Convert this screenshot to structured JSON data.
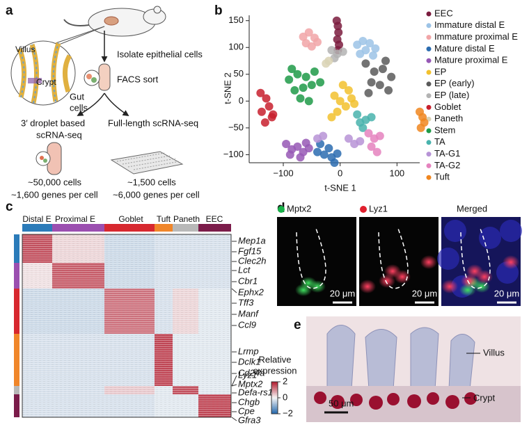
{
  "panel_a": {
    "label": "a",
    "villus": "Villus",
    "crypt": "Crypt",
    "gut_cells": [
      "Gut",
      "cells"
    ],
    "step1": "Isolate epithelial cells",
    "step2": "FACS sort",
    "method1": [
      "3′ droplet based",
      "scRNA-seq"
    ],
    "method2": "Full-length scRNA-seq",
    "result1": [
      "~50,000 cells",
      "~1,600 genes per cell"
    ],
    "result2": [
      "~1,500 cells",
      "~6,000 genes per cell"
    ]
  },
  "panel_b": {
    "label": "b"
  },
  "panel_c": {
    "label": "c"
  },
  "panel_d": {
    "label": "d",
    "channels": [
      "Mptx2",
      "Lyz1",
      "Merged"
    ],
    "channel_colors": [
      "#19b34a",
      "#e0202e",
      null
    ],
    "scale": [
      "20 μm",
      "20 μm",
      "20 μm"
    ]
  },
  "panel_e": {
    "label": "e",
    "villus": "Villus",
    "crypt": "Crypt",
    "scale": "50 μm"
  },
  "chart_data": [
    {
      "type": "scatter",
      "xlabel": "t-SNE 1",
      "ylabel": "t-SNE 2",
      "xlim": [
        -160,
        140
      ],
      "ylim": [
        -115,
        160
      ],
      "xticks": [
        {
          "value": -100,
          "label": "−100"
        },
        0,
        100
      ],
      "yticks": [
        {
          "value": -100,
          "label": "−100"
        },
        {
          "value": -50,
          "label": "−50"
        },
        0,
        50,
        100,
        150
      ],
      "legend": "right",
      "series": [
        {
          "name": "EEC",
          "color": "#7b1c3e",
          "x": [
            -6,
            -4,
            -3,
            -5,
            -2,
            -4
          ],
          "values": [
            150,
            140,
            128,
            115,
            105,
            95
          ]
        },
        {
          "name": "Immature distal E",
          "color": "#9cc3e6",
          "x": [
            30,
            40,
            52,
            62,
            45,
            35,
            58
          ],
          "values": [
            105,
            112,
            108,
            98,
            95,
            88,
            85
          ]
        },
        {
          "name": "Immature proximal E",
          "color": "#f1a5a7",
          "x": [
            -65,
            -55,
            -45,
            -60,
            -50,
            -40
          ],
          "values": [
            120,
            128,
            118,
            108,
            102,
            110
          ]
        },
        {
          "name": "Mature distal E",
          "color": "#2b6cb0",
          "x": [
            -40,
            -28,
            -15,
            -5,
            -35,
            -20,
            -10
          ],
          "values": [
            -95,
            -100,
            -105,
            -98,
            -80,
            -88,
            -115
          ]
        },
        {
          "name": "Mature proximal E",
          "color": "#9658b5",
          "x": [
            -95,
            -85,
            -75,
            -65,
            -55,
            -88,
            -70,
            -60
          ],
          "values": [
            -80,
            -90,
            -85,
            -95,
            -88,
            -100,
            -105,
            -78
          ]
        },
        {
          "name": "EP",
          "color": "#f2c12e",
          "x": [
            -10,
            0,
            10,
            20,
            -5,
            15,
            5,
            25,
            -15
          ],
          "values": [
            10,
            0,
            -10,
            5,
            -20,
            20,
            30,
            -5,
            -30
          ]
        },
        {
          "name": "EP (early)",
          "color": "#5a5a5a",
          "x": [
            45,
            60,
            75,
            90,
            55,
            70,
            85,
            50,
            80
          ],
          "values": [
            70,
            55,
            60,
            45,
            35,
            30,
            20,
            15,
            75
          ]
        },
        {
          "name": "EP (late)",
          "color": "#b3b3b3",
          "x": [
            -15,
            -5,
            5,
            -10
          ],
          "values": [
            95,
            88,
            92,
            80
          ]
        },
        {
          "name": "Goblet",
          "color": "#c8202e",
          "x": [
            -140,
            -130,
            -125,
            -138,
            -120,
            -132,
            -118
          ],
          "values": [
            15,
            5,
            -10,
            -20,
            -30,
            -40,
            -25
          ]
        },
        {
          "name": "Paneth",
          "color": "#d9d2b4",
          "x": [
            -20,
            -25
          ],
          "values": [
            75,
            70
          ]
        },
        {
          "name": "Stem",
          "color": "#1f9a48",
          "x": [
            -90,
            -75,
            -60,
            -45,
            -80,
            -65,
            -50,
            -35,
            -70,
            -55,
            -85
          ],
          "values": [
            40,
            50,
            45,
            55,
            20,
            25,
            30,
            35,
            5,
            0,
            60
          ]
        },
        {
          "name": "TA",
          "color": "#49b3ad",
          "x": [
            30,
            45,
            40,
            55,
            35
          ],
          "values": [
            -25,
            -35,
            -50,
            -30,
            -40
          ]
        },
        {
          "name": "TA-G1",
          "color": "#b793d6",
          "x": [
            15,
            25,
            35,
            -40,
            -30
          ],
          "values": [
            -70,
            -80,
            -75,
            -70,
            -65
          ]
        },
        {
          "name": "TA-G2",
          "color": "#e583be",
          "x": [
            50,
            60,
            70,
            55,
            65
          ],
          "values": [
            -60,
            -70,
            -65,
            -85,
            -95
          ]
        },
        {
          "name": "Tuft",
          "color": "#f0861f",
          "x": [
            140,
            145,
            148,
            142
          ],
          "values": [
            -20,
            -30,
            -40,
            -50
          ]
        }
      ]
    },
    {
      "type": "heatmap",
      "categories": [
        "Distal E",
        "Proximal E",
        "Goblet",
        "Tuft",
        "Paneth",
        "EEC"
      ],
      "category_colors": [
        "#2b7bb9",
        "#9b4fb0",
        "#d7282f",
        "#f0862a",
        "#b8b8b8",
        "#7b1c4a"
      ],
      "rows": [
        {
          "color": "#2b7bb9",
          "genes": [
            "Mep1a",
            "Fgf15",
            "Clec2h"
          ]
        },
        {
          "color": "#9b4fb0",
          "genes": [
            "Lct",
            "Cbr1",
            "Ephx2"
          ]
        },
        {
          "color": "#d7282f",
          "genes": [
            "Tff3",
            "Manf",
            "Ccl9"
          ]
        },
        {
          "color": "#f0862a",
          "genes": [
            "Lrmp",
            "Dclk1",
            "Cd24a"
          ]
        },
        {
          "color": "#b8b8b8",
          "genes": [
            "Lyz1",
            "Mptx2",
            "Defa-rs1"
          ]
        },
        {
          "color": "#7b1c4a",
          "genes": [
            "Chgb",
            "Cpe",
            "Gfra3"
          ]
        }
      ],
      "values": [
        [
          1.5,
          0.3,
          -0.4,
          -0.3,
          -0.3,
          -0.3
        ],
        [
          0.2,
          1.4,
          -0.4,
          -0.3,
          -0.3,
          -0.3
        ],
        [
          -0.4,
          -0.4,
          1.2,
          -0.3,
          0.3,
          -0.2
        ],
        [
          -0.3,
          -0.3,
          -0.3,
          1.6,
          -0.2,
          -0.2
        ],
        [
          -0.3,
          -0.3,
          0.4,
          -0.2,
          1.5,
          -0.2
        ],
        [
          -0.3,
          -0.3,
          -0.3,
          -0.2,
          -0.2,
          1.6
        ]
      ],
      "colorbar": {
        "title": [
          "Relative",
          "expression"
        ],
        "lim": [
          -2,
          2
        ],
        "ticks": [
          2,
          0,
          {
            "value": -2,
            "label": "−2"
          }
        ],
        "colors": [
          "#2166ac",
          "#f7f7f7",
          "#b2182b"
        ]
      }
    }
  ]
}
